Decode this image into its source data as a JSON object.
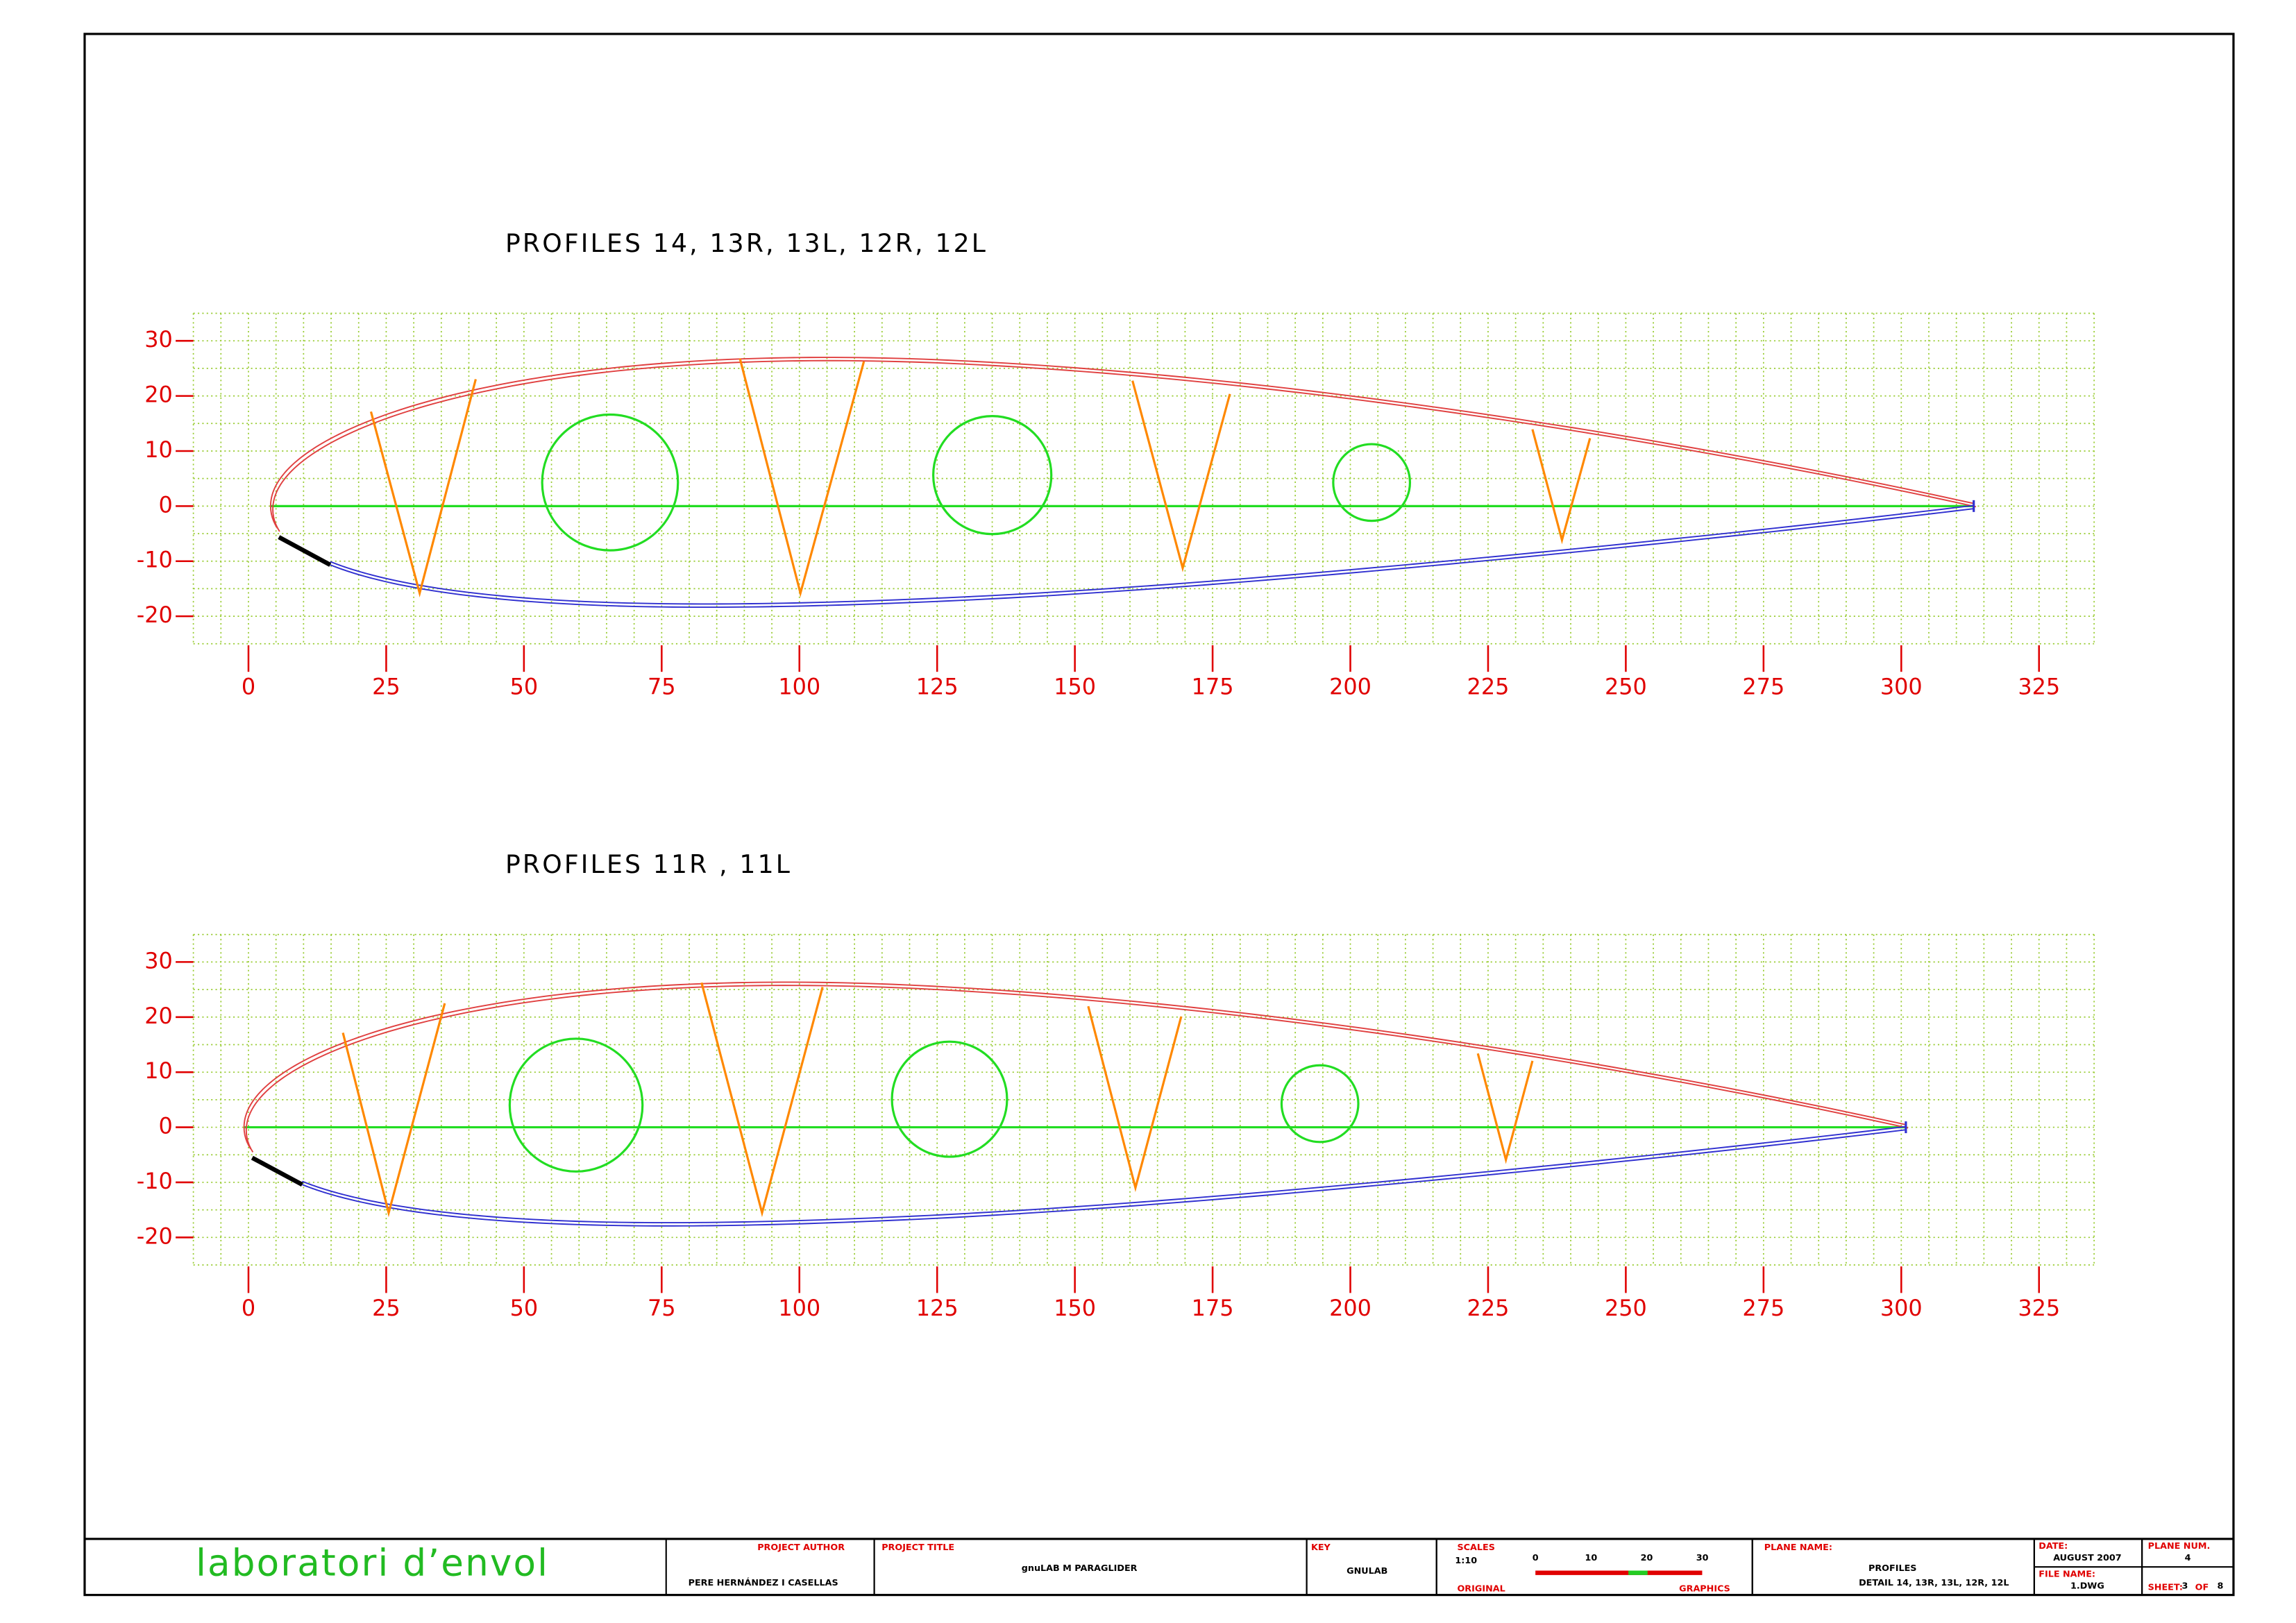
{
  "drawings": [
    {
      "title": "PROFILES 14, 13R, 13L, 12R, 12L",
      "xticks": [
        0,
        25,
        50,
        75,
        100,
        125,
        150,
        175,
        200,
        225,
        250,
        275,
        300,
        325
      ],
      "yticks": [
        30,
        20,
        10,
        0,
        -10,
        -20
      ],
      "xlim": [
        -10,
        335
      ],
      "ylim": [
        -25,
        35
      ],
      "minor_step": 5,
      "grid": true
    },
    {
      "title": "PROFILES 11R , 11L",
      "xticks": [
        0,
        25,
        50,
        75,
        100,
        125,
        150,
        175,
        200,
        225,
        250,
        275,
        300,
        325
      ],
      "yticks": [
        30,
        20,
        10,
        0,
        -10,
        -20
      ],
      "xlim": [
        -10,
        335
      ],
      "ylim": [
        -25,
        35
      ],
      "minor_step": 5,
      "grid": true
    }
  ],
  "title_block": {
    "logo": "laboratori d’envol",
    "author_label": "PROJECT AUTHOR",
    "author": "PERE HERNÁNDEZ I CASELLAS",
    "project_label": "PROJECT TITLE",
    "project": "gnuLAB M PARAGLIDER",
    "key_label": "KEY",
    "key": "GNULAB",
    "scales_label": "SCALES",
    "scale": "1:10",
    "original_label": "ORIGINAL",
    "graphics_label": "GRAPHICS",
    "scale_bar_labels": [
      "0",
      "10",
      "20",
      "30"
    ],
    "plane_name_label": "PLANE NAME:",
    "plane_name": "PROFILES",
    "plane_detail": "DETAIL 14, 13R, 13L, 12R, 12L",
    "date_label": "DATE:",
    "date": "AUGUST 2007",
    "file_label": "FILE NAME:",
    "file": "1.DWG",
    "plane_num_label": "PLANE NUM.",
    "plane_num": "4",
    "sheet_label": "SHEET:",
    "sheet": "3",
    "sheet_of": "OF",
    "sheets": "8"
  }
}
